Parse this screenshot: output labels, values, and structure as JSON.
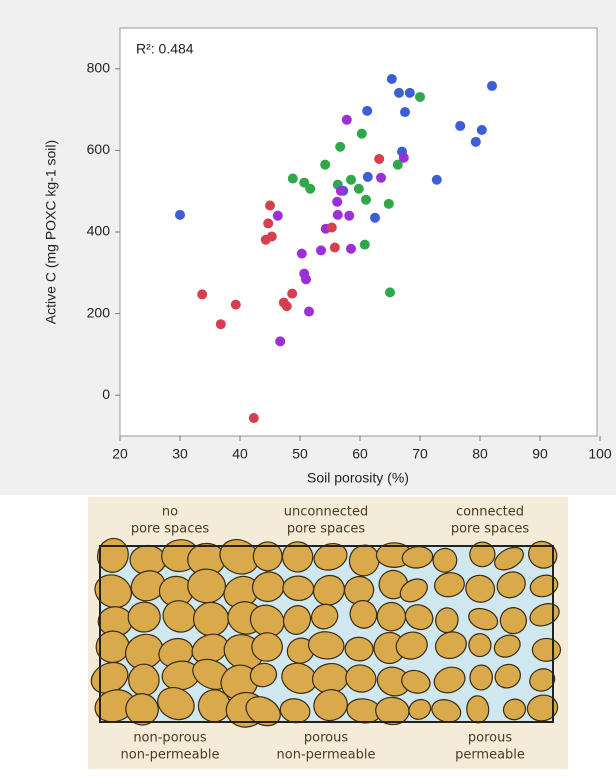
{
  "chart_data": {
    "type": "scatter",
    "annotation": "R²: 0.484",
    "x_label": "Soil porosity (%)",
    "y_label": "Active C (mg POXC kg-1 soil)",
    "xlim": [
      20,
      100
    ],
    "ylim": [
      -100,
      900
    ],
    "xticks": [
      20,
      30,
      40,
      50,
      60,
      70,
      80,
      90,
      100
    ],
    "yticks": [
      0,
      200,
      400,
      600,
      800
    ],
    "grid": false,
    "series": [
      {
        "color": "#3c5fd6",
        "x": [
          30,
          65.3,
          66.5,
          68.3,
          82,
          61.2,
          67.5,
          76.7,
          80.3,
          79.3,
          67,
          72.8,
          61.3,
          57.2,
          62.5
        ],
        "values": [
          442,
          775,
          741,
          741,
          758,
          697,
          694,
          660,
          650,
          621,
          597,
          528,
          535,
          501,
          435
        ]
      },
      {
        "color": "#2fa84a",
        "x": [
          70,
          60.3,
          56.7,
          66.3,
          54.2,
          48.8,
          58.5,
          50.7,
          51.7,
          56.3,
          59.8,
          61,
          64.8,
          60.8,
          65
        ],
        "values": [
          731,
          641,
          609,
          565,
          565,
          531,
          528,
          521,
          506,
          516,
          506,
          479,
          469,
          369,
          252
        ]
      },
      {
        "color": "#9b30d9",
        "x": [
          57.8,
          67.3,
          63.5,
          56.8,
          46.3,
          56.3,
          58.2,
          56.2,
          54.3,
          58.5,
          53.5,
          50.3,
          50.7,
          51,
          51.5,
          46.7
        ],
        "values": [
          675,
          582,
          533,
          501,
          440,
          442,
          440,
          474,
          408,
          359,
          355,
          347,
          298,
          284,
          205,
          132
        ]
      },
      {
        "color": "#d4404f",
        "x": [
          63.2,
          45,
          44.7,
          45.3,
          44.3,
          55.3,
          55.8,
          48.7,
          47.3,
          47.8,
          33.7,
          39.3,
          36.8,
          42.3
        ],
        "values": [
          579,
          465,
          421,
          389,
          381,
          411,
          362,
          249,
          227,
          218,
          247,
          222,
          174,
          -56
        ]
      }
    ]
  },
  "diagram": {
    "top_labels": [
      [
        "no",
        "pore spaces"
      ],
      [
        "unconnected",
        "pore spaces"
      ],
      [
        "connected",
        "pore spaces"
      ]
    ],
    "bottom_labels": [
      [
        "non-porous",
        "non-permeable"
      ],
      [
        "porous",
        "non-permeable"
      ],
      [
        "porous",
        "permeable"
      ]
    ]
  }
}
